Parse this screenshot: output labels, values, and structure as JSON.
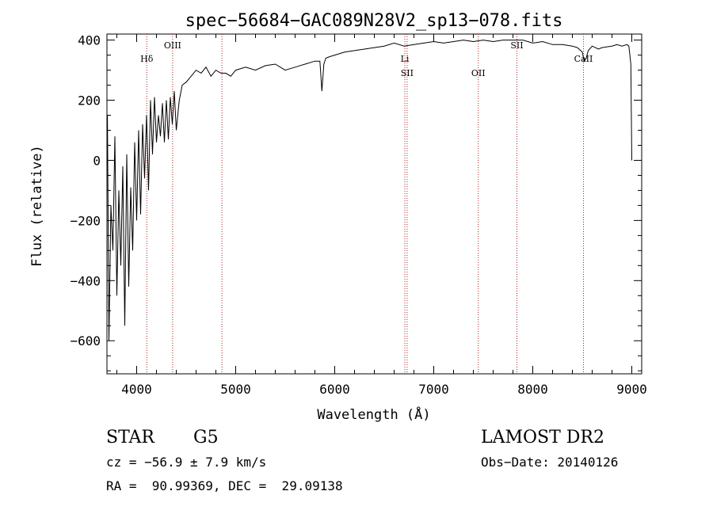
{
  "chart_data": {
    "type": "line",
    "title": "spec−56684−GAC089N28V2_sp13−078.fits",
    "xlabel": "Wavelength (Å)",
    "ylabel": "Flux (relative)",
    "xlim": [
      3700,
      9100
    ],
    "ylim": [
      -710,
      420
    ],
    "x_ticks": [
      4000,
      5000,
      6000,
      7000,
      8000,
      9000
    ],
    "y_ticks": [
      -600,
      -400,
      -200,
      0,
      200,
      400
    ],
    "y_tick_labels": [
      "−600",
      "−400",
      "−200",
      "0",
      "200",
      "400"
    ],
    "grid": false,
    "series": [
      {
        "x": [
          3705,
          3720,
          3740,
          3760,
          3780,
          3800,
          3820,
          3840,
          3860,
          3880,
          3900,
          3920,
          3940,
          3960,
          3980,
          4000,
          4020,
          4040,
          4060,
          4080,
          4100,
          4120,
          4140,
          4160,
          4180,
          4200,
          4220,
          4240,
          4260,
          4280,
          4300,
          4320,
          4340,
          4360,
          4380,
          4400,
          4430,
          4460,
          4500,
          4550,
          4600,
          4650,
          4700,
          4750,
          4800,
          4850,
          4900,
          4950,
          5000,
          5100,
          5200,
          5300,
          5400,
          5500,
          5600,
          5700,
          5800,
          5850,
          5870,
          5890,
          5910,
          5950,
          6000,
          6100,
          6200,
          6300,
          6400,
          6500,
          6600,
          6700,
          6800,
          6900,
          7000,
          7100,
          7200,
          7300,
          7400,
          7500,
          7600,
          7700,
          7800,
          7900,
          8000,
          8100,
          8200,
          8300,
          8400,
          8450,
          8500,
          8520,
          8540,
          8560,
          8600,
          8662,
          8700,
          8800,
          8850,
          8900,
          8950,
          8970,
          8990,
          9000
        ],
        "y": [
          150,
          -600,
          -150,
          -300,
          80,
          -450,
          -100,
          -350,
          -20,
          -550,
          20,
          -420,
          -90,
          -300,
          60,
          -200,
          100,
          -180,
          120,
          -60,
          150,
          -100,
          200,
          20,
          210,
          60,
          150,
          80,
          190,
          60,
          200,
          70,
          210,
          120,
          230,
          100,
          200,
          250,
          260,
          280,
          300,
          290,
          310,
          280,
          300,
          290,
          290,
          280,
          300,
          310,
          300,
          315,
          320,
          300,
          310,
          320,
          330,
          330,
          230,
          320,
          340,
          345,
          350,
          360,
          365,
          370,
          375,
          380,
          390,
          380,
          385,
          390,
          395,
          390,
          395,
          400,
          395,
          400,
          395,
          400,
          400,
          400,
          390,
          395,
          385,
          385,
          380,
          375,
          360,
          330,
          340,
          365,
          380,
          370,
          375,
          380,
          385,
          380,
          385,
          380,
          320,
          0
        ]
      }
    ],
    "line_markers": [
      {
        "label": "Hδ",
        "x": 4102,
        "label_row": "upper"
      },
      {
        "label": "OIII",
        "x": 4363,
        "label_row": "top"
      },
      {
        "label": "",
        "x": 4861,
        "label_row": "none"
      },
      {
        "label": "Li",
        "x": 6708,
        "label_row": "upper"
      },
      {
        "label": "SII",
        "x": 6731,
        "label_row": "lower"
      },
      {
        "label": "OII",
        "x": 7450,
        "label_row": "lower"
      },
      {
        "label": "SII",
        "x": 7840,
        "label_row": "top"
      },
      {
        "label": "CaII",
        "x": 8512,
        "label_row": "upper"
      }
    ]
  },
  "info": {
    "object_type": "STAR",
    "subclass": "G5",
    "survey": "LAMOST DR2",
    "cz": "cz = −56.9 ± 7.9 km/s",
    "obs_date": "Obs−Date: 20140126",
    "coords": "RA =  90.99369, DEC =  29.09138"
  },
  "colors": {
    "line": "#000000",
    "marker": "#aa2222",
    "background": "#ffffff"
  }
}
